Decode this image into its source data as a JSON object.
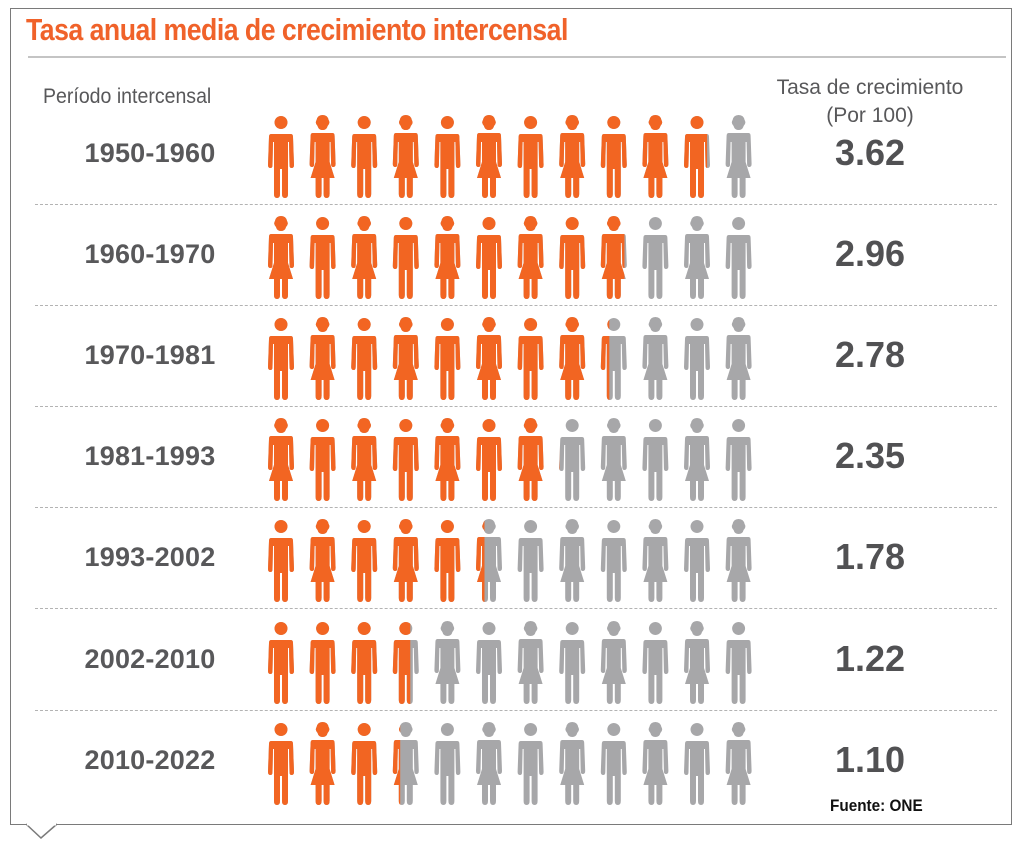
{
  "title": "Tasa anual media de crecimiento intercensal",
  "column_headers": {
    "period": "Período intercensal",
    "rate_line1": "Tasa de crecimiento",
    "rate_line2": "(Por 100)"
  },
  "source": "Fuente: ONE",
  "colors": {
    "accent": "#f26522",
    "inactive": "#a7a7a9",
    "text": "#58585a",
    "title": "#f0622a"
  },
  "icons": [
    "male-figure-icon",
    "female-figure-icon"
  ],
  "chart_data": {
    "type": "pictogram",
    "title": "Tasa anual media de crecimiento intercensal",
    "xlabel": "Período intercensal",
    "ylabel": "Tasa de crecimiento (Por 100)",
    "figures_per_row": 12,
    "units_per_figure": 0.3333,
    "max_value": 4,
    "categories": [
      "1950-1960",
      "1960-1970",
      "1970-1981",
      "1981-1993",
      "1993-2002",
      "2002-2010",
      "2010-2022"
    ],
    "values": [
      3.62,
      2.96,
      2.78,
      2.35,
      1.78,
      1.22,
      1.1
    ],
    "value_labels": [
      "3.62",
      "2.96",
      "2.78",
      "2.35",
      "1.78",
      "1.22",
      "1.10"
    ],
    "figure_patterns": [
      "MFMFMFMFMFMF",
      "FMFMFMFMFMFM",
      "MFMFMFMFMFMF",
      "FMFMFMFMFMFM",
      "MFMFMFMFMFMF",
      "MMMMFMFMFMFM",
      "MFMFMFMFMFMF"
    ]
  }
}
